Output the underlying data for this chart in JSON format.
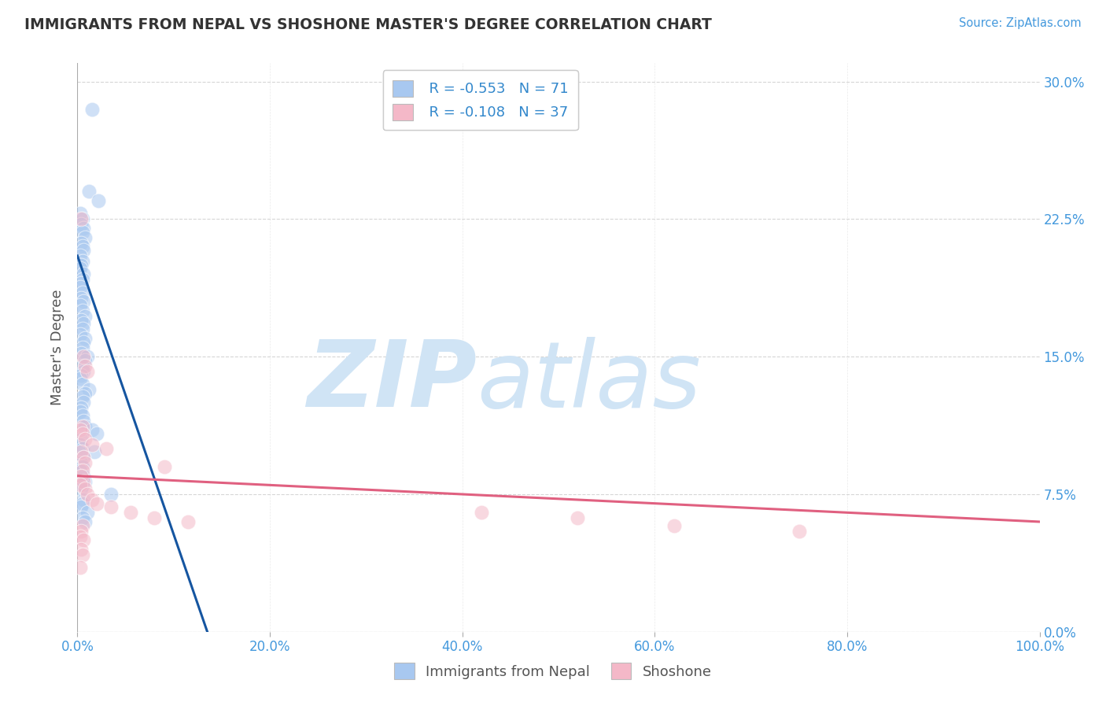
{
  "title": "IMMIGRANTS FROM NEPAL VS SHOSHONE MASTER'S DEGREE CORRELATION CHART",
  "source_text": "Source: ZipAtlas.com",
  "ylabel": "Master's Degree",
  "ytick_vals": [
    0.0,
    7.5,
    15.0,
    22.5,
    30.0
  ],
  "legend_blue_r": "R = -0.553",
  "legend_blue_n": "N = 71",
  "legend_pink_r": "R = -0.108",
  "legend_pink_n": "N = 37",
  "legend_blue_label": "Immigrants from Nepal",
  "legend_pink_label": "Shoshone",
  "blue_color": "#A8C8F0",
  "pink_color": "#F4B8C8",
  "line_blue_color": "#1555A0",
  "line_pink_color": "#E06080",
  "watermark_zip": "ZIP",
  "watermark_atlas": "atlas",
  "watermark_color": "#D0E4F5",
  "background_color": "#FFFFFF",
  "blue_scatter_x": [
    1.5,
    1.2,
    2.2,
    0.3,
    0.5,
    0.4,
    0.6,
    0.5,
    0.8,
    0.4,
    0.5,
    0.6,
    0.3,
    0.5,
    0.4,
    0.3,
    0.6,
    0.5,
    0.4,
    0.3,
    0.5,
    0.4,
    0.6,
    0.3,
    0.5,
    0.8,
    0.4,
    0.6,
    0.5,
    0.3,
    0.8,
    0.6,
    0.5,
    0.4,
    1.0,
    0.8,
    0.5,
    0.6,
    0.4,
    0.3,
    0.5,
    1.2,
    0.8,
    0.5,
    0.6,
    0.4,
    0.3,
    0.5,
    0.6,
    0.8,
    1.5,
    2.0,
    0.4,
    0.3,
    0.5,
    1.8,
    0.6,
    0.4,
    0.5,
    0.3,
    0.6,
    0.8,
    0.5,
    0.4,
    3.5,
    0.6,
    0.5,
    0.4,
    1.0,
    0.5,
    0.8
  ],
  "blue_scatter_y": [
    28.5,
    24.0,
    23.5,
    22.8,
    22.5,
    22.2,
    22.0,
    21.8,
    21.5,
    21.2,
    21.0,
    20.8,
    20.5,
    20.2,
    20.0,
    19.8,
    19.5,
    19.2,
    19.0,
    18.8,
    18.5,
    18.2,
    18.0,
    17.8,
    17.5,
    17.2,
    17.0,
    16.8,
    16.5,
    16.2,
    16.0,
    15.8,
    15.5,
    15.2,
    15.0,
    14.8,
    14.5,
    14.2,
    14.0,
    13.8,
    13.5,
    13.2,
    13.0,
    12.8,
    12.5,
    12.2,
    12.0,
    11.8,
    11.5,
    11.2,
    11.0,
    10.8,
    10.5,
    10.2,
    10.0,
    9.8,
    9.5,
    9.2,
    9.0,
    8.8,
    8.5,
    8.2,
    8.0,
    7.8,
    7.5,
    7.2,
    7.0,
    6.8,
    6.5,
    6.2,
    6.0
  ],
  "pink_scatter_x": [
    0.4,
    0.6,
    0.8,
    1.0,
    0.5,
    0.3,
    0.5,
    0.8,
    1.5,
    3.0,
    0.4,
    0.6,
    0.8,
    9.0,
    0.5,
    0.4,
    0.6,
    0.3,
    0.8,
    1.0,
    1.5,
    2.0,
    3.5,
    5.5,
    8.0,
    11.5,
    0.5,
    0.4,
    0.3,
    42.0,
    52.0,
    62.0,
    75.0,
    0.6,
    0.4,
    0.5,
    0.3
  ],
  "pink_scatter_y": [
    22.5,
    15.0,
    14.5,
    14.2,
    11.2,
    11.0,
    10.8,
    10.5,
    10.2,
    10.0,
    9.8,
    9.5,
    9.2,
    9.0,
    8.8,
    8.5,
    8.2,
    8.0,
    7.8,
    7.5,
    7.2,
    7.0,
    6.8,
    6.5,
    6.2,
    6.0,
    5.8,
    5.5,
    5.2,
    6.5,
    6.2,
    5.8,
    5.5,
    5.0,
    4.5,
    4.2,
    3.5
  ],
  "blue_line_x": [
    0.0,
    13.5
  ],
  "blue_line_y": [
    20.5,
    0.0
  ],
  "pink_line_x": [
    0.0,
    100.0
  ],
  "pink_line_y": [
    8.5,
    6.0
  ],
  "xlim": [
    0,
    100
  ],
  "ylim": [
    0,
    31
  ],
  "xtick_vals": [
    0,
    20,
    40,
    60,
    80,
    100
  ]
}
